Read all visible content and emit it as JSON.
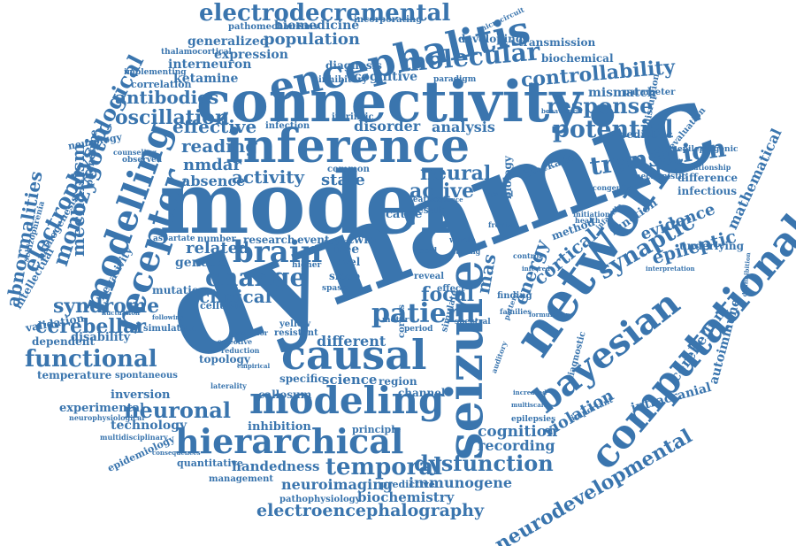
{
  "cloud": {
    "color": "#3a75ae",
    "words": {
      "dynamic": "dynamic",
      "model": "model",
      "connectivity": "connectivity",
      "inference": "inference",
      "network": "network",
      "seizure": "seizure",
      "computational": "computational",
      "encephalitis": "encephalitis",
      "bayesian": "bayesian",
      "causal": "causal",
      "modeling": "modeling",
      "hierarchical": "hierarchical",
      "receptor": "receptor",
      "modelling": "modelling",
      "brain": "brain",
      "functional": "functional",
      "potential": "potential",
      "transition": "transition",
      "molecular": "molecular",
      "controllability": "controllability",
      "electrodecremental": "electrodecremental",
      "patient": "patient",
      "neuronal": "neuronal",
      "synaptic": "synaptic",
      "electrophysiological": "electrophysiological",
      "neurodevelopmental": "neurodevelopmental",
      "electroencephalography": "electroencephalography",
      "temporal": "temporal",
      "dysfunction": "dysfunction",
      "response": "response",
      "change": "change",
      "oscillation": "oscillation",
      "antibodies": "antibodies",
      "reading": "reading",
      "effective": "effective",
      "nmdar": "nmdar",
      "absence": "absence",
      "activity": "activity",
      "related": "related",
      "genetic": "genetic",
      "mechanism": "mechanism",
      "monozygotic": "monozygotic",
      "abnormalities": "abnormalities",
      "cerebellar": "cerebellar",
      "syndrome": "syndrome",
      "clinical": "clinical",
      "mutation": "mutation",
      "neural": "neural",
      "active": "active",
      "state": "state",
      "disorder": "disorder",
      "analysis": "analysis",
      "focal": "focal",
      "energy": "energy",
      "cortical": "cortical",
      "evidence": "evidence",
      "epileptic": "epileptic",
      "mathematical": "mathematical",
      "autoimmune": "autoimmune",
      "cerebellum": "cerebellum",
      "violation": "violation",
      "intracranial": "intracranial",
      "cognition": "cognition",
      "recording": "recording",
      "immunogene": "immunogene",
      "neuroimaging": "neuroimaging",
      "biochemistry": "biochemistry",
      "handedness": "handedness",
      "inhibition": "inhibition",
      "technology": "technology",
      "experimental": "experimental",
      "inversion": "inversion",
      "temperature": "temperature",
      "different": "different",
      "science": "science",
      "region": "region",
      "channel": "channel",
      "population": "population",
      "generalized": "generalized",
      "expression": "expression",
      "interneuron": "interneuron",
      "ketamine": "ketamine",
      "biomedicine": "biomedicine",
      "cognitive": "cognitive",
      "transmission": "transmission",
      "biochemical": "biochemical",
      "developing": "developing",
      "incorporating": "incorporating",
      "mismatch": "mismatch",
      "pediatric": "pediatric",
      "underlying": "underlying",
      "difference": "difference",
      "infectious": "infectious",
      "blockade": "blockade",
      "biology": "biology",
      "function": "function",
      "method": "method",
      "disability": "disability",
      "validation": "validation",
      "dependent": "dependent",
      "negativity": "negativity",
      "intellectual": "intellectual",
      "neurology": "neurology",
      "phenotype": "phenotype",
      "pathogenesis": "pathogenesis",
      "schizophrenia": "schizophrenia",
      "epidemiology": "epidemiology",
      "quantitative": "quantitative",
      "management": "management",
      "pathophysiology": "pathophysiology",
      "predictive": "predictive",
      "principle": "principle",
      "research": "research",
      "event": "event",
      "twin": "twin",
      "cause": "cause",
      "free": "free",
      "level": "level",
      "sleep": "sleep",
      "common": "common",
      "result": "result",
      "specific": "specific",
      "callosum": "callosum",
      "topology": "topology",
      "simulation": "simulation",
      "cellular": "cellular",
      "spontaneous": "spontaneous",
      "infection": "infection",
      "intrinsic": "intrinsic",
      "paradigm": "paradigm",
      "correlation": "correlation",
      "implementing": "implementing",
      "thalamocortical": "thalamocortical",
      "pathomechanisms": "pathomechanisms",
      "diagnosis": "diagnosis",
      "inhibitory": "inhibitory",
      "parameter": "parameter",
      "evaluation": "evaluation",
      "epileptogenic": "epileptogenic",
      "relationship": "relationship",
      "mechanistic": "mechanistic",
      "congenital": "congenital",
      "initiation": "initiation",
      "infantile": "infantile",
      "diagnostic": "diagnostic",
      "important": "important",
      "epilepsies": "epilepsies",
      "multiscale": "multiscale",
      "interpretation": "interpretation",
      "disinhibition": "disinhibition",
      "finding": "finding",
      "families": "families",
      "simulate": "simulate",
      "observed": "observed",
      "counseling": "counseling",
      "following": "following",
      "empirical": "empirical",
      "selective": "selective",
      "reduction": "reduction",
      "laterality": "laterality",
      "posterior": "posterior",
      "resistant": "resistant",
      "yellow": "yellow",
      "scn1a": "scn1a",
      "higher": "higher",
      "number": "number",
      "aspartate": "aspartate",
      "fluctuation": "fluctuation",
      "neurophysiological": "neurophysiological",
      "multidisciplinary": "multidisciplinary",
      "consequences": "consequences",
      "mas": "mas",
      "spatial": "spatial",
      "microcircuit": "microcircuit",
      "disruption": "disruption",
      "corpus": "corpus",
      "spectral": "spectral",
      "period": "period",
      "motor": "motor",
      "health": "health",
      "local": "local",
      "child": "child",
      "effect": "effect",
      "control": "control",
      "auditory": "auditory",
      "pattern": "pattern",
      "increased": "increased",
      "feature": "feature",
      "sequence": "sequence",
      "behavioural": "behavioural",
      "frontal": "frontal",
      "formulation": "formulation",
      "reveal": "reveal",
      "spasm": "spasm",
      "inferred": "inferred",
      "whole": "whole",
      "fasting": "fasting"
    }
  }
}
